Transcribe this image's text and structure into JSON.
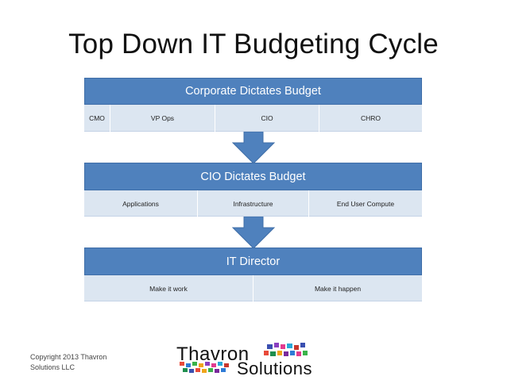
{
  "title": "Top Down IT Budgeting Cycle",
  "blocks": [
    {
      "header": "Corporate Dictates  Budget",
      "cells": [
        "CMO",
        "VP Ops",
        "CIO",
        "CHRO"
      ]
    },
    {
      "header": "CIO Dictates Budget",
      "cells": [
        "Applications",
        "Infrastructure",
        "End User Compute"
      ]
    },
    {
      "header": "IT Director",
      "cells": [
        "Make it work",
        "Make it happen"
      ]
    }
  ],
  "colors": {
    "header_fill": "#4f81bd",
    "cell_fill": "#dce6f1",
    "arrow_fill": "#4f81bd"
  },
  "footer": {
    "copyright_line1": "Copyright 2013  Thavron",
    "copyright_line2": "Solutions LLC"
  },
  "logo": {
    "word1": "Thavron",
    "word2": "Solutions"
  }
}
